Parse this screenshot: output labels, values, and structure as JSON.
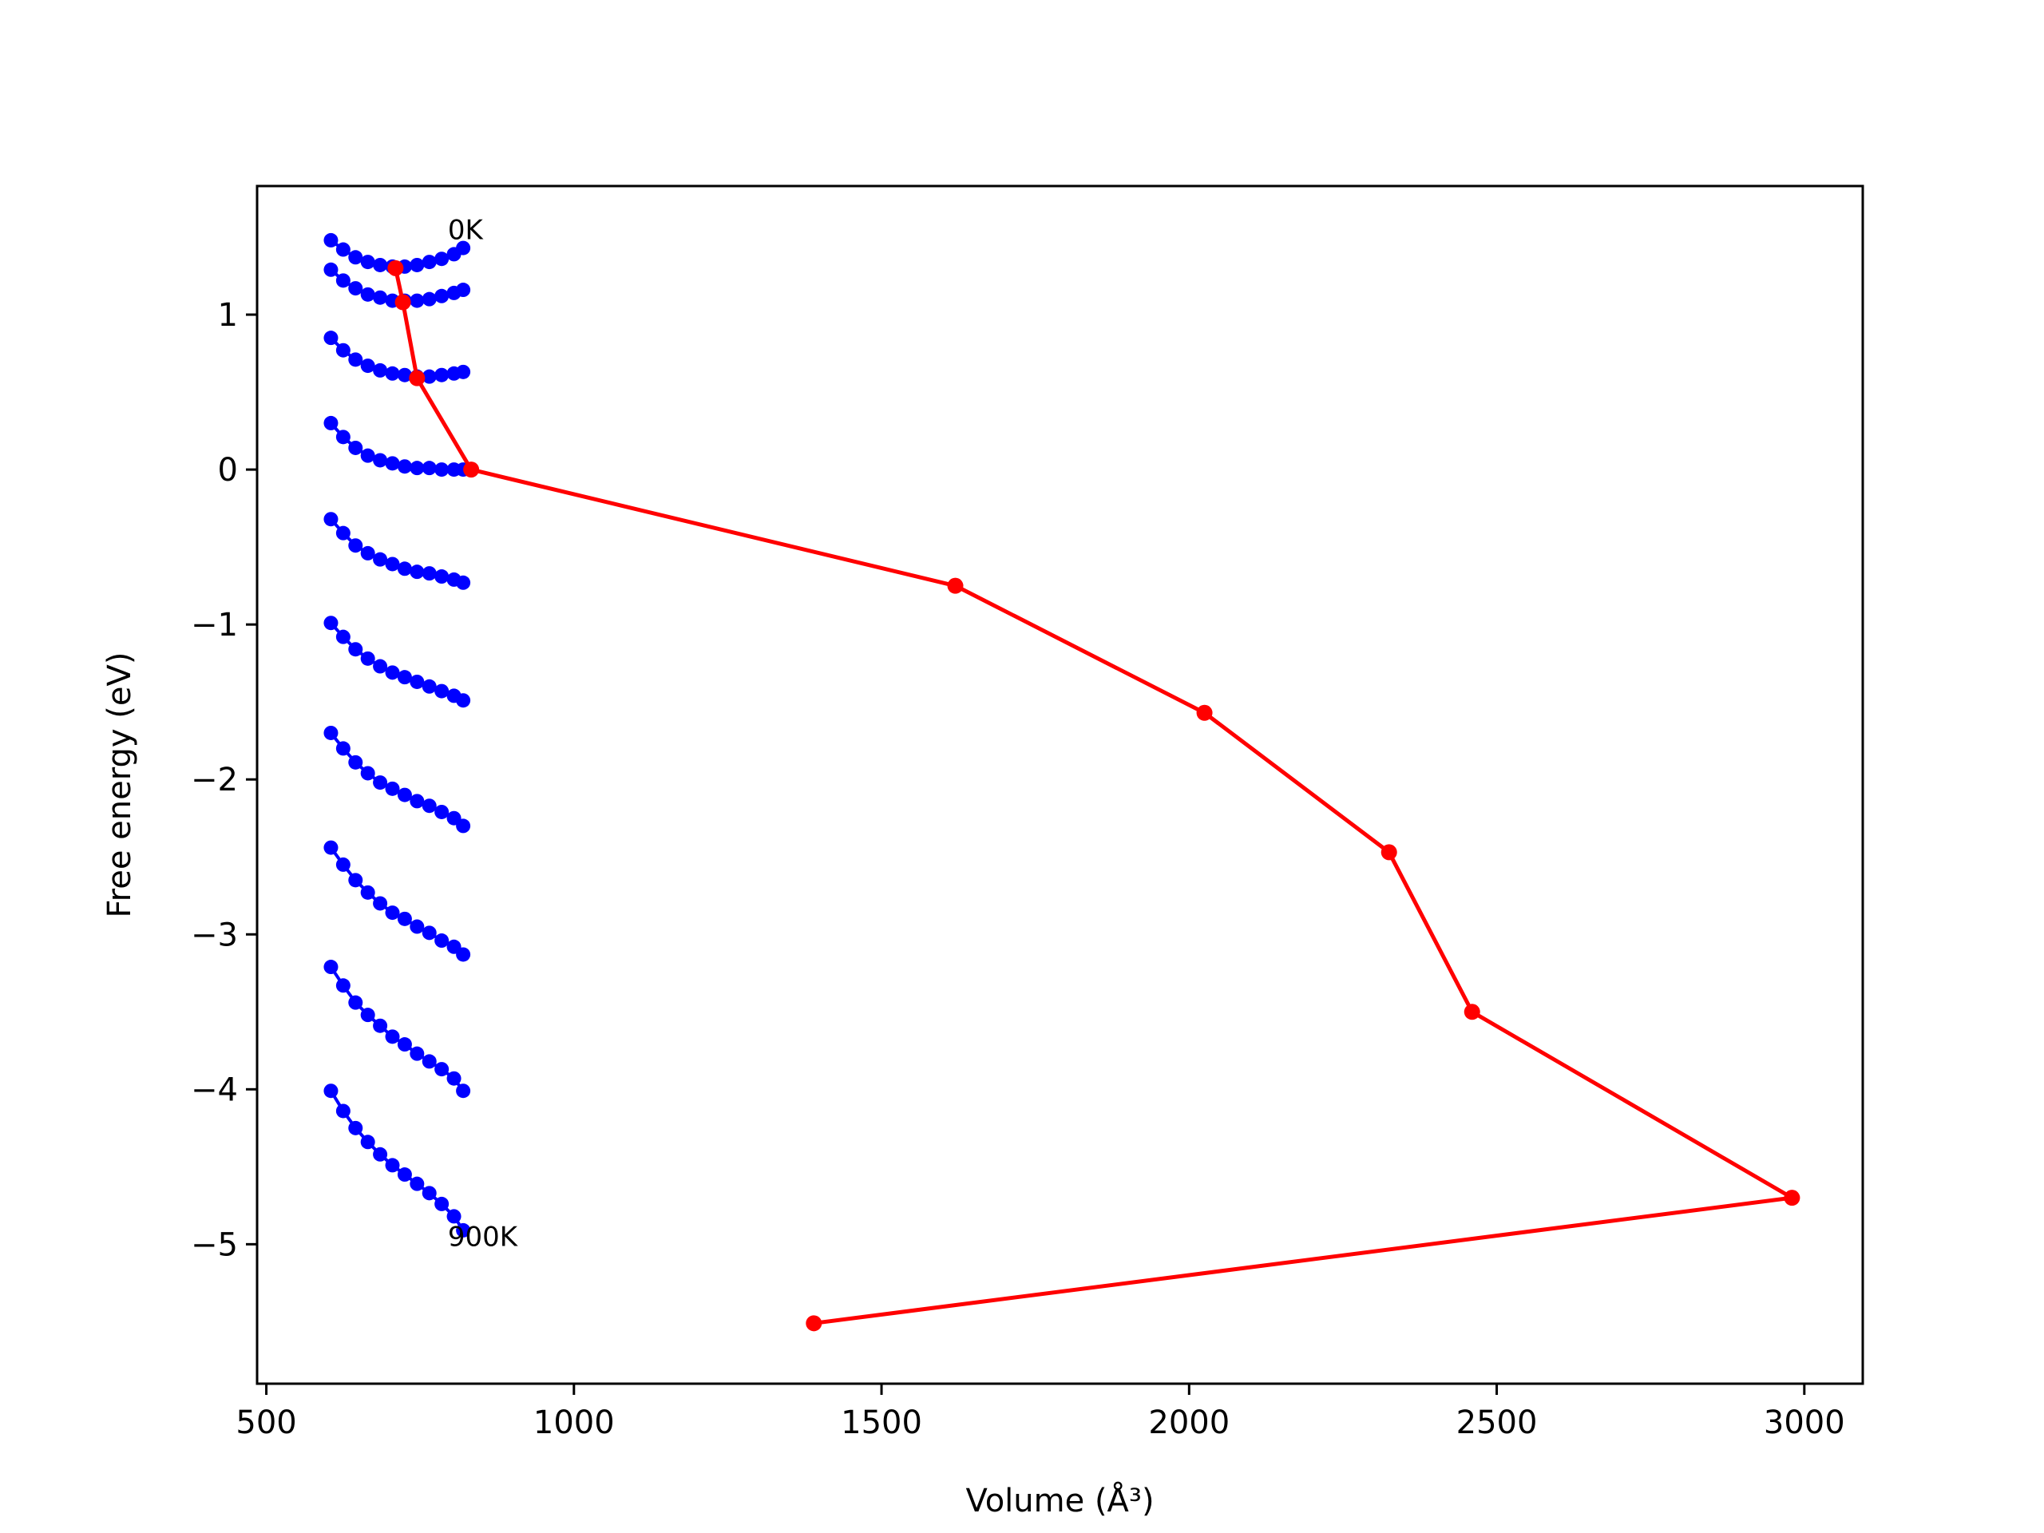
{
  "chart_data": {
    "type": "line",
    "title": "",
    "xlabel": "Volume (Å³)",
    "ylabel": "Free energy (eV)",
    "xlim": [
      485,
      3095
    ],
    "ylim": [
      -5.9,
      1.83
    ],
    "xticks": [
      500,
      1000,
      1500,
      2000,
      2500,
      3000
    ],
    "yticks": [
      -5,
      -4,
      -3,
      -2,
      -1,
      0,
      1
    ],
    "grid": false,
    "legend": "none",
    "colors": {
      "curves": "#0000ff",
      "minimum_path": "#ff0000",
      "axes": "#000000"
    },
    "annotations": [
      {
        "text": "0K",
        "x": 795,
        "y": 1.55
      },
      {
        "text": "900K",
        "x": 795,
        "y": -4.95
      }
    ],
    "curve_volumes": [
      605,
      625,
      645,
      665,
      685,
      705,
      725,
      745,
      765,
      785,
      805,
      820
    ],
    "series": [
      {
        "color": "#0000ff",
        "values": [
          1.48,
          1.42,
          1.37,
          1.34,
          1.32,
          1.31,
          1.31,
          1.32,
          1.34,
          1.36,
          1.39,
          1.43
        ]
      },
      {
        "color": "#0000ff",
        "values": [
          1.29,
          1.22,
          1.17,
          1.13,
          1.11,
          1.09,
          1.09,
          1.09,
          1.1,
          1.12,
          1.14,
          1.16
        ]
      },
      {
        "color": "#0000ff",
        "values": [
          0.85,
          0.77,
          0.71,
          0.67,
          0.64,
          0.62,
          0.61,
          0.6,
          0.6,
          0.61,
          0.62,
          0.63
        ]
      },
      {
        "color": "#0000ff",
        "values": [
          0.3,
          0.21,
          0.14,
          0.09,
          0.06,
          0.04,
          0.02,
          0.01,
          0.01,
          0.0,
          0.0,
          0.0
        ]
      },
      {
        "color": "#0000ff",
        "values": [
          -0.32,
          -0.41,
          -0.49,
          -0.54,
          -0.58,
          -0.61,
          -0.64,
          -0.66,
          -0.67,
          -0.69,
          -0.71,
          -0.73
        ]
      },
      {
        "color": "#0000ff",
        "values": [
          -0.99,
          -1.08,
          -1.16,
          -1.22,
          -1.27,
          -1.31,
          -1.34,
          -1.37,
          -1.4,
          -1.43,
          -1.46,
          -1.49
        ]
      },
      {
        "color": "#0000ff",
        "values": [
          -1.7,
          -1.8,
          -1.89,
          -1.96,
          -2.02,
          -2.06,
          -2.1,
          -2.14,
          -2.17,
          -2.21,
          -2.25,
          -2.3
        ]
      },
      {
        "color": "#0000ff",
        "values": [
          -2.44,
          -2.55,
          -2.65,
          -2.73,
          -2.8,
          -2.86,
          -2.9,
          -2.95,
          -2.99,
          -3.04,
          -3.08,
          -3.13
        ]
      },
      {
        "color": "#0000ff",
        "values": [
          -3.21,
          -3.33,
          -3.44,
          -3.52,
          -3.59,
          -3.66,
          -3.71,
          -3.77,
          -3.82,
          -3.87,
          -3.93,
          -4.01
        ]
      },
      {
        "color": "#0000ff",
        "values": [
          -4.01,
          -4.14,
          -4.25,
          -4.34,
          -4.42,
          -4.49,
          -4.55,
          -4.61,
          -4.67,
          -4.74,
          -4.82,
          -4.91
        ]
      }
    ],
    "minimum_path": {
      "color": "#ff0000",
      "x": [
        710,
        722,
        745,
        833,
        1620,
        2025,
        2325,
        2460,
        2980,
        1390
      ],
      "y": [
        1.3,
        1.08,
        0.59,
        0.0,
        -0.75,
        -1.57,
        -2.47,
        -3.5,
        -4.7,
        -5.51
      ]
    }
  }
}
